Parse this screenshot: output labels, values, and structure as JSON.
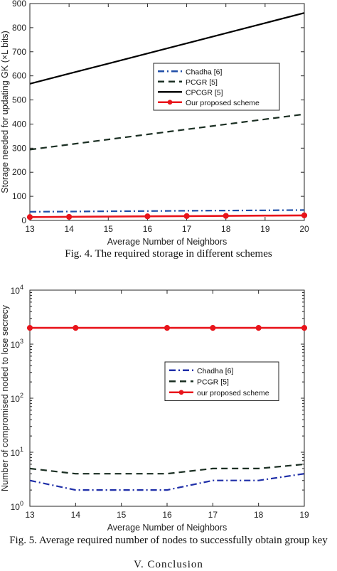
{
  "figures": [
    {
      "caption": "Fig. 4. The required storage in different schemes"
    },
    {
      "caption": "Fig. 5. Average required number of nodes to successfully obtain group key"
    }
  ],
  "section_heading": "V. Conclusion",
  "chart_data": [
    {
      "type": "line",
      "title": "",
      "xlabel": "Average Number of Neighbors",
      "ylabel": "Storage needed for updating GK (×L bits)",
      "xlim": [
        13,
        20
      ],
      "ylim": [
        0,
        900
      ],
      "xticks": [
        13,
        14,
        15,
        16,
        17,
        18,
        19,
        20
      ],
      "yticks": [
        0,
        100,
        200,
        300,
        400,
        500,
        600,
        700,
        800,
        900
      ],
      "grid": false,
      "legend_position": "upper-right",
      "x": [
        13,
        14,
        15,
        16,
        17,
        18,
        19,
        20
      ],
      "series": [
        {
          "name": "Chadha [6]",
          "color": "#1f4ea8",
          "style": "dashdot",
          "values": [
            36,
            37,
            38,
            39,
            40,
            41,
            42,
            43
          ]
        },
        {
          "name": "PCGR [5]",
          "color": "#1a2e22",
          "style": "dashed",
          "values": [
            294,
            315,
            336,
            357,
            378,
            399,
            420,
            441
          ]
        },
        {
          "name": "CPCGR [5]",
          "color": "#000000",
          "style": "solid",
          "values": [
            567,
            609,
            651,
            693,
            735,
            777,
            819,
            861
          ]
        },
        {
          "name": "Our proposed scheme",
          "color": "#e8141b",
          "style": "solid-marker",
          "values": [
            14,
            15,
            16,
            17,
            18,
            19,
            20,
            21
          ],
          "markers": [
            13,
            14,
            16,
            17,
            18,
            20
          ]
        }
      ]
    },
    {
      "type": "line",
      "title": "",
      "xlabel": "Average Number of Neighbors",
      "ylabel": "Number of compromised noded to lose secrecy",
      "xlim": [
        13,
        19
      ],
      "ylim": [
        1,
        10000
      ],
      "yscale": "log",
      "xticks": [
        13,
        14,
        15,
        16,
        17,
        18,
        19
      ],
      "yticks": [
        1,
        10,
        100,
        1000,
        10000
      ],
      "yticklabels": [
        [
          "10",
          "0"
        ],
        [
          "10",
          "1"
        ],
        [
          "10",
          "2"
        ],
        [
          "10",
          "3"
        ],
        [
          "10",
          "4"
        ]
      ],
      "grid": false,
      "legend_position": "center-right",
      "x": [
        13,
        14,
        16,
        17,
        18,
        19
      ],
      "series": [
        {
          "name": "Chadha [6]",
          "color": "#1f2fa8",
          "style": "dashdot",
          "values": [
            3,
            2,
            2,
            3,
            3,
            4
          ]
        },
        {
          "name": "PCGR [5]",
          "color": "#1a2e22",
          "style": "dashed",
          "values": [
            5,
            4,
            4,
            5,
            5,
            6
          ]
        },
        {
          "name": "our proposed scheme",
          "color": "#e8141b",
          "style": "solid-marker",
          "values": [
            2000,
            2000,
            2000,
            2000,
            2000,
            2000
          ],
          "markers": [
            13,
            14,
            16,
            17,
            18,
            19
          ]
        }
      ]
    }
  ]
}
